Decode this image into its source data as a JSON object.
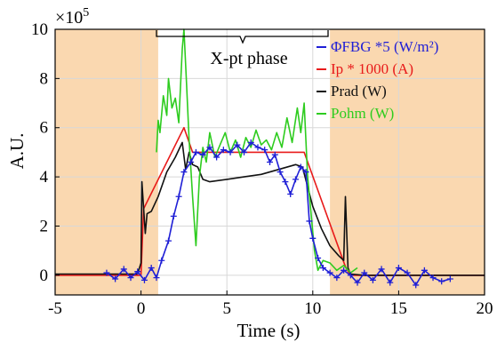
{
  "chart_data": {
    "type": "line",
    "title": "",
    "xlabel": "Time (s)",
    "ylabel": "A.U.",
    "y_multiplier_label": "×10",
    "y_multiplier_exponent": "5",
    "xlim": [
      -5,
      20
    ],
    "ylim": [
      -0.8,
      10
    ],
    "x_ticks": [
      -5,
      0,
      5,
      10,
      15,
      20
    ],
    "x_tick_labels": [
      "-5",
      "0",
      "5",
      "10",
      "15",
      "20"
    ],
    "y_ticks": [
      0,
      2,
      4,
      6,
      8,
      10
    ],
    "y_tick_labels": [
      "0",
      "2",
      "4",
      "6",
      "8",
      "10"
    ],
    "grid": true,
    "legend_position": "top-right",
    "shaded_regions": [
      {
        "x": [
          -5,
          1
        ],
        "color": "#fad8b0"
      },
      {
        "x": [
          11,
          20
        ],
        "color": "#fad8b0"
      }
    ],
    "annotation": {
      "text": "X-pt phase",
      "x_start": 1,
      "x_end": 11
    },
    "series": [
      {
        "name": "ΦFBG *5 (W/m²)",
        "color": "#1f1fd6",
        "marker": "+",
        "x": [
          -2,
          -1.5,
          -1,
          -0.6,
          -0.2,
          0.2,
          0.6,
          0.9,
          1.2,
          1.6,
          1.9,
          2.2,
          2.5,
          2.9,
          3.2,
          3.6,
          4.0,
          4.4,
          4.8,
          5.2,
          5.6,
          6.0,
          6.4,
          6.8,
          7.2,
          7.5,
          7.8,
          8.1,
          8.4,
          8.7,
          9.0,
          9.3,
          9.6,
          9.8,
          10.0,
          10.3,
          10.6,
          11.0,
          11.4,
          11.8,
          12.2,
          12.6,
          13.0,
          13.5,
          14.0,
          14.5,
          15.0,
          15.5,
          16.0,
          16.5,
          17.0,
          17.5,
          18.0
        ],
        "y": [
          0.1,
          -0.15,
          0.25,
          -0.1,
          0.15,
          -0.2,
          0.3,
          -0.1,
          0.6,
          1.4,
          2.4,
          3.2,
          4.2,
          4.6,
          5.0,
          4.9,
          5.2,
          4.8,
          5.1,
          5.0,
          5.3,
          5.0,
          5.4,
          5.2,
          5.1,
          4.6,
          4.9,
          4.2,
          3.8,
          3.3,
          3.9,
          4.4,
          4.2,
          2.2,
          1.5,
          0.7,
          0.3,
          0.1,
          -0.1,
          0.2,
          0.0,
          -0.3,
          0.1,
          -0.2,
          0.25,
          -0.3,
          0.3,
          0.1,
          -0.4,
          0.2,
          -0.1,
          -0.25,
          -0.15
        ]
      },
      {
        "name": "Ip * 1000  (A)",
        "color": "#e81a1a",
        "x": [
          -5,
          0,
          0.15,
          2.5,
          3.0,
          9.5,
          11.9,
          12.2,
          20
        ],
        "y": [
          0,
          0,
          2.7,
          6.0,
          5.0,
          5.0,
          0.35,
          0,
          0
        ]
      },
      {
        "name": "Prad (W)",
        "color": "#111111",
        "x": [
          -5,
          -0.2,
          0.0,
          0.05,
          0.25,
          0.35,
          0.6,
          1.0,
          1.5,
          2.0,
          2.4,
          2.6,
          2.8,
          3.0,
          3.3,
          3.6,
          4.0,
          5.0,
          6.0,
          7.0,
          8.0,
          9.0,
          9.4,
          9.7,
          10.0,
          10.5,
          11.0,
          11.5,
          11.8,
          11.9,
          12.05,
          12.2,
          13.0,
          20
        ],
        "y": [
          0.05,
          0.05,
          0.5,
          3.8,
          1.7,
          2.5,
          2.6,
          3.2,
          4.2,
          4.8,
          5.4,
          4.3,
          5.0,
          4.5,
          4.4,
          3.9,
          3.8,
          3.9,
          4.0,
          4.1,
          4.3,
          4.5,
          4.4,
          3.6,
          2.8,
          1.9,
          1.2,
          0.8,
          0.6,
          3.2,
          0.3,
          0.05,
          0.0,
          0.0
        ]
      },
      {
        "name": "Pohm (W)",
        "color": "#2ecc1f",
        "x": [
          0.9,
          1.0,
          1.1,
          1.3,
          1.5,
          1.6,
          1.8,
          2.0,
          2.2,
          2.4,
          2.5,
          2.65,
          2.8,
          3.0,
          3.2,
          3.4,
          3.6,
          3.8,
          4.0,
          4.3,
          4.6,
          4.9,
          5.2,
          5.5,
          5.8,
          6.1,
          6.4,
          6.7,
          7.0,
          7.3,
          7.6,
          7.9,
          8.2,
          8.5,
          8.8,
          9.1,
          9.3,
          9.5,
          9.7,
          9.9,
          10.1,
          10.3,
          10.6,
          11.0,
          11.4,
          11.8,
          12.2,
          12.6
        ],
        "y": [
          5.0,
          6.3,
          5.8,
          7.3,
          6.5,
          8.0,
          6.8,
          7.2,
          6.2,
          9.2,
          10.0,
          7.8,
          5.5,
          3.2,
          1.2,
          4.0,
          5.2,
          4.6,
          5.8,
          4.8,
          5.3,
          5.8,
          5.0,
          5.5,
          4.8,
          5.6,
          5.2,
          5.9,
          5.3,
          5.5,
          5.1,
          5.8,
          5.2,
          6.4,
          5.4,
          6.8,
          5.8,
          7.0,
          4.0,
          2.5,
          1.0,
          0.2,
          0.6,
          0.5,
          0.2,
          0.4,
          0.1,
          0.3
        ]
      }
    ]
  }
}
